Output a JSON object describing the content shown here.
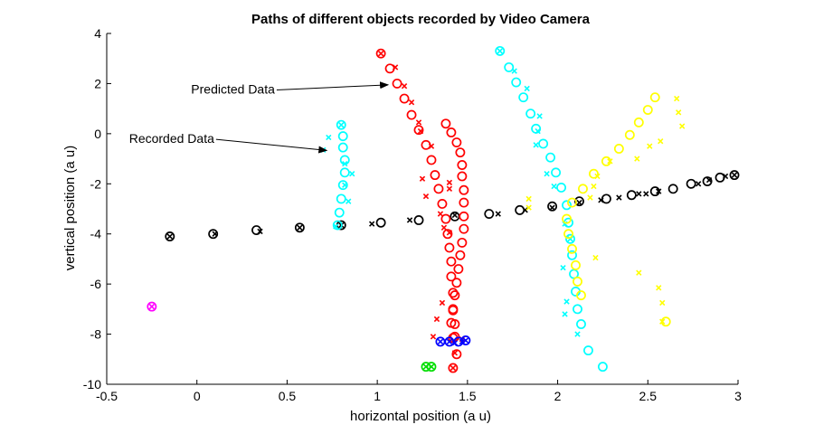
{
  "chart_data": {
    "type": "scatter",
    "title": "Paths of different objects recorded by Video Camera",
    "xlabel": "horizontal position (a u)",
    "ylabel": "vertical position (a u)",
    "xlim": [
      -0.5,
      3
    ],
    "ylim": [
      -10,
      4
    ],
    "xticks": [
      "-0.5",
      "0",
      "0.5",
      "1",
      "1.5",
      "2",
      "2.5",
      "3"
    ],
    "yticks": [
      "4",
      "2",
      "0",
      "-2",
      "-4",
      "-6",
      "-8",
      "-10"
    ],
    "grid": false,
    "annotations": [
      {
        "text": "Predicted Data",
        "text_at": [
          0.2,
          1.6
        ],
        "arrow_to": [
          1.06,
          1.95
        ]
      },
      {
        "text": "Recorded Data",
        "text_at": [
          -0.14,
          -0.37
        ],
        "arrow_to": [
          0.72,
          -0.67
        ]
      }
    ],
    "series": [
      {
        "color": "#000000",
        "recorded": [
          [
            -0.15,
            -4.1
          ],
          [
            0.1,
            -4.0
          ],
          [
            0.35,
            -3.9
          ],
          [
            0.57,
            -3.75
          ],
          [
            0.8,
            -3.65
          ],
          [
            0.97,
            -3.6
          ],
          [
            1.18,
            -3.45
          ],
          [
            1.43,
            -3.25
          ],
          [
            1.67,
            -3.2
          ],
          [
            1.82,
            -3.05
          ],
          [
            1.97,
            -2.95
          ],
          [
            2.12,
            -2.75
          ],
          [
            2.24,
            -2.65
          ],
          [
            2.34,
            -2.55
          ],
          [
            2.45,
            -2.4
          ],
          [
            2.49,
            -2.4
          ],
          [
            2.56,
            -2.3
          ],
          [
            2.78,
            -2.0
          ],
          [
            2.84,
            -1.85
          ],
          [
            2.93,
            -1.7
          ],
          [
            2.98,
            -1.65
          ]
        ],
        "predicted": [
          [
            -0.15,
            -4.1
          ],
          [
            0.09,
            -4.0
          ],
          [
            0.33,
            -3.85
          ],
          [
            0.57,
            -3.75
          ],
          [
            0.8,
            -3.65
          ],
          [
            1.02,
            -3.55
          ],
          [
            1.23,
            -3.45
          ],
          [
            1.43,
            -3.3
          ],
          [
            1.62,
            -3.2
          ],
          [
            1.79,
            -3.05
          ],
          [
            1.97,
            -2.9
          ],
          [
            2.12,
            -2.7
          ],
          [
            2.27,
            -2.6
          ],
          [
            2.41,
            -2.45
          ],
          [
            2.54,
            -2.3
          ],
          [
            2.64,
            -2.2
          ],
          [
            2.74,
            -2.0
          ],
          [
            2.83,
            -1.9
          ],
          [
            2.9,
            -1.75
          ],
          [
            2.98,
            -1.65
          ]
        ]
      },
      {
        "color": "#00ffff",
        "recorded": [
          [
            0.8,
            0.35
          ],
          [
            0.73,
            -0.15
          ],
          [
            0.7,
            -0.65
          ],
          [
            0.82,
            -1.2
          ],
          [
            0.86,
            -1.6
          ],
          [
            0.82,
            -2.05
          ],
          [
            0.84,
            -2.7
          ],
          [
            0.77,
            -3.7
          ],
          [
            1.68,
            3.3
          ],
          [
            1.76,
            2.5
          ],
          [
            1.83,
            1.8
          ],
          [
            1.9,
            0.7
          ],
          [
            1.89,
            0.1
          ],
          [
            1.88,
            -0.45
          ],
          [
            1.94,
            -1.6
          ],
          [
            1.98,
            -2.1
          ],
          [
            2.04,
            -3.6
          ],
          [
            2.07,
            -4.2
          ],
          [
            2.03,
            -5.35
          ],
          [
            2.05,
            -6.7
          ],
          [
            2.04,
            -7.2
          ],
          [
            2.11,
            -8.0
          ]
        ],
        "predicted": [
          [
            0.8,
            0.35
          ],
          [
            0.81,
            -0.1
          ],
          [
            0.81,
            -0.55
          ],
          [
            0.82,
            -1.05
          ],
          [
            0.82,
            -1.55
          ],
          [
            0.81,
            -2.05
          ],
          [
            0.8,
            -2.6
          ],
          [
            0.79,
            -3.15
          ],
          [
            0.78,
            -3.65
          ],
          [
            1.68,
            3.3
          ],
          [
            1.73,
            2.65
          ],
          [
            1.77,
            2.05
          ],
          [
            1.81,
            1.45
          ],
          [
            1.85,
            0.8
          ],
          [
            1.88,
            0.2
          ],
          [
            1.92,
            -0.4
          ],
          [
            1.96,
            -0.95
          ],
          [
            1.99,
            -1.55
          ],
          [
            2.02,
            -2.15
          ],
          [
            2.05,
            -2.85
          ],
          [
            2.06,
            -3.55
          ],
          [
            2.07,
            -4.2
          ],
          [
            2.08,
            -4.85
          ],
          [
            2.09,
            -5.6
          ],
          [
            2.1,
            -6.3
          ],
          [
            2.11,
            -7.0
          ],
          [
            2.13,
            -7.6
          ],
          [
            2.17,
            -8.65
          ],
          [
            2.25,
            -9.3
          ]
        ]
      },
      {
        "color": "#ff0000",
        "recorded": [
          [
            1.02,
            3.2
          ],
          [
            1.1,
            2.65
          ],
          [
            1.15,
            1.9
          ],
          [
            1.19,
            1.25
          ],
          [
            1.23,
            0.45
          ],
          [
            1.24,
            0.1
          ],
          [
            1.3,
            -0.5
          ],
          [
            1.25,
            -1.8
          ],
          [
            1.27,
            -2.5
          ],
          [
            1.4,
            -1.95
          ],
          [
            1.4,
            -2.2
          ],
          [
            1.35,
            -3.2
          ],
          [
            1.37,
            -3.75
          ],
          [
            1.4,
            -3.95
          ],
          [
            1.36,
            -6.75
          ],
          [
            1.33,
            -7.4
          ],
          [
            1.31,
            -8.1
          ],
          [
            1.47,
            -8.2
          ],
          [
            1.43,
            -8.75
          ],
          [
            1.42,
            -9.35
          ]
        ],
        "predicted": [
          [
            1.02,
            3.2
          ],
          [
            1.07,
            2.6
          ],
          [
            1.11,
            2.0
          ],
          [
            1.15,
            1.4
          ],
          [
            1.19,
            0.75
          ],
          [
            1.23,
            0.15
          ],
          [
            1.27,
            -0.45
          ],
          [
            1.3,
            -1.05
          ],
          [
            1.32,
            -1.65
          ],
          [
            1.34,
            -2.2
          ],
          [
            1.36,
            -2.8
          ],
          [
            1.38,
            -3.4
          ],
          [
            1.39,
            -4.0
          ],
          [
            1.4,
            -4.55
          ],
          [
            1.41,
            -5.1
          ],
          [
            1.41,
            -5.7
          ],
          [
            1.42,
            -6.35
          ],
          [
            1.42,
            -7.0
          ],
          [
            1.43,
            -7.6
          ],
          [
            1.43,
            -8.1
          ],
          [
            1.44,
            -8.8
          ],
          [
            1.42,
            -9.35
          ],
          [
            1.38,
            0.4
          ],
          [
            1.41,
            0.05
          ],
          [
            1.44,
            -0.35
          ],
          [
            1.46,
            -0.75
          ],
          [
            1.47,
            -1.25
          ],
          [
            1.47,
            -1.7
          ],
          [
            1.48,
            -2.25
          ],
          [
            1.48,
            -2.75
          ],
          [
            1.48,
            -3.3
          ],
          [
            1.48,
            -3.8
          ],
          [
            1.47,
            -4.35
          ],
          [
            1.46,
            -4.85
          ],
          [
            1.45,
            -5.4
          ],
          [
            1.44,
            -5.95
          ],
          [
            1.43,
            -6.45
          ],
          [
            1.42,
            -7.05
          ],
          [
            1.41,
            -7.55
          ],
          [
            1.42,
            -8.15
          ]
        ]
      },
      {
        "color": "#ffff00",
        "recorded": [
          [
            2.66,
            1.4
          ],
          [
            2.67,
            0.85
          ],
          [
            2.69,
            0.3
          ],
          [
            2.57,
            -0.3
          ],
          [
            2.51,
            -0.5
          ],
          [
            2.44,
            -1.0
          ],
          [
            2.29,
            -1.1
          ],
          [
            2.22,
            -1.7
          ],
          [
            2.2,
            -2.1
          ],
          [
            2.18,
            -2.55
          ],
          [
            1.84,
            -2.6
          ],
          [
            1.84,
            -2.95
          ],
          [
            2.21,
            -4.95
          ],
          [
            2.45,
            -5.55
          ],
          [
            2.56,
            -6.15
          ],
          [
            2.58,
            -6.75
          ],
          [
            2.58,
            -7.5
          ]
        ],
        "predicted": [
          [
            2.54,
            1.45
          ],
          [
            2.5,
            0.95
          ],
          [
            2.45,
            0.45
          ],
          [
            2.4,
            -0.05
          ],
          [
            2.34,
            -0.6
          ],
          [
            2.27,
            -1.1
          ],
          [
            2.2,
            -1.6
          ],
          [
            2.14,
            -2.2
          ],
          [
            2.08,
            -2.75
          ],
          [
            2.05,
            -3.4
          ],
          [
            2.06,
            -4.0
          ],
          [
            2.08,
            -4.6
          ],
          [
            2.1,
            -5.25
          ],
          [
            2.11,
            -5.9
          ],
          [
            2.13,
            -6.45
          ],
          [
            2.6,
            -7.5
          ]
        ]
      },
      {
        "color": "#0000ff",
        "recorded": [
          [
            1.35,
            -8.3
          ],
          [
            1.4,
            -8.3
          ],
          [
            1.43,
            -8.35
          ],
          [
            1.47,
            -8.3
          ],
          [
            1.49,
            -8.25
          ]
        ],
        "predicted": [
          [
            1.35,
            -8.3
          ],
          [
            1.4,
            -8.3
          ],
          [
            1.45,
            -8.3
          ],
          [
            1.49,
            -8.25
          ]
        ]
      },
      {
        "color": "#00dd00",
        "recorded": [
          [
            1.27,
            -9.3
          ],
          [
            1.3,
            -9.3
          ]
        ],
        "predicted": [
          [
            1.27,
            -9.3
          ],
          [
            1.3,
            -9.3
          ]
        ]
      },
      {
        "color": "#ff00ff",
        "recorded": [
          [
            -0.25,
            -6.9
          ]
        ],
        "predicted": [
          [
            -0.25,
            -6.9
          ]
        ]
      }
    ]
  }
}
